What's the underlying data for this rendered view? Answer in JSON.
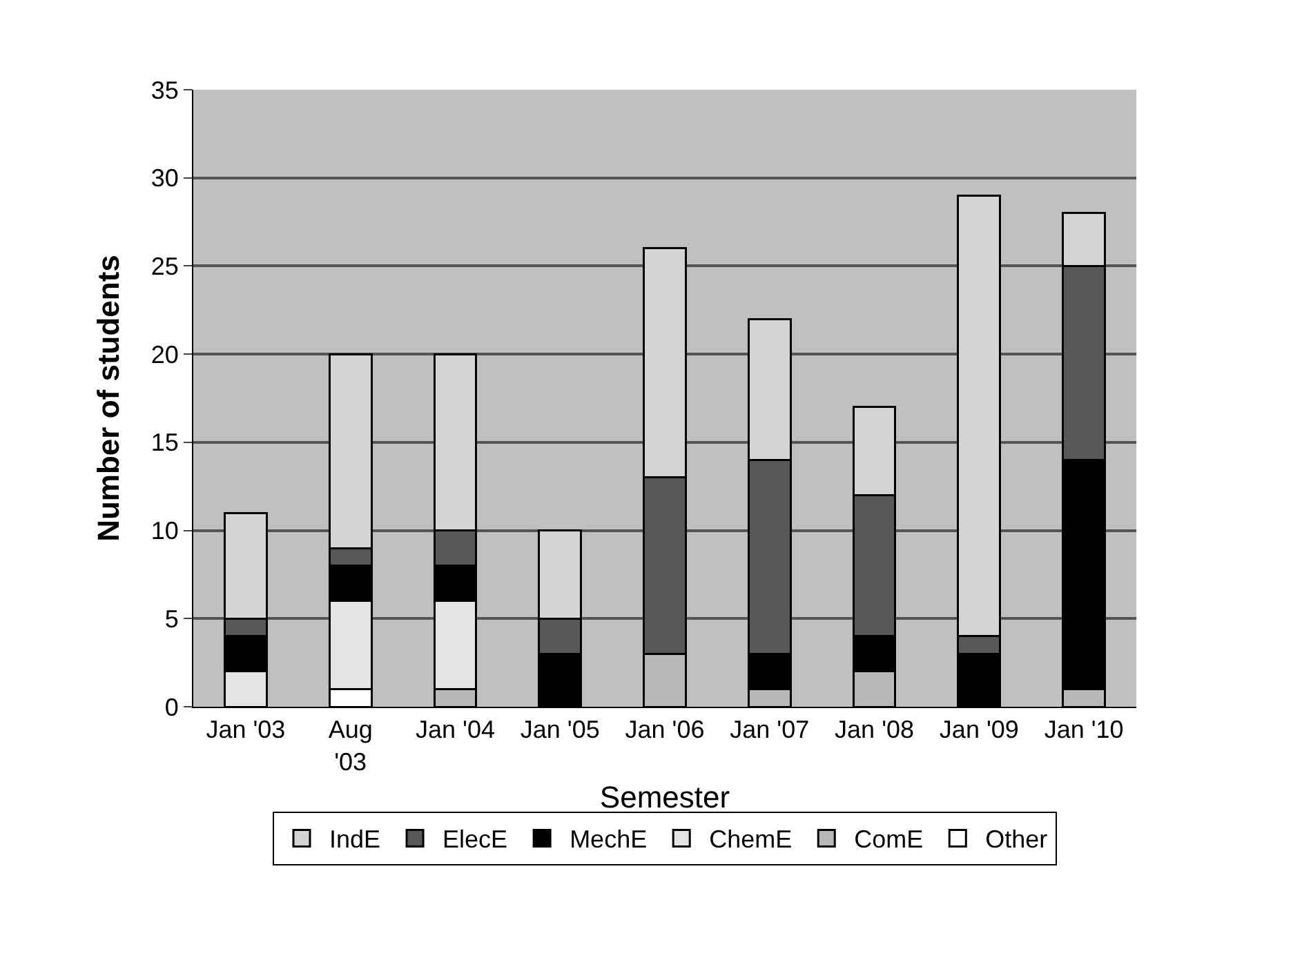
{
  "chart_data": {
    "type": "bar",
    "stacked": true,
    "xlabel": "Semester",
    "ylabel": "Number of students",
    "categories": [
      "Jan '03",
      "Aug '03",
      "Jan '04",
      "Jan '05",
      "Jan '06",
      "Jan '07",
      "Jan '08",
      "Jan '09",
      "Jan '10"
    ],
    "series": [
      {
        "name": "Other",
        "color": "#ffffff",
        "values": [
          0,
          1,
          0,
          0,
          0,
          0,
          0,
          0,
          0
        ]
      },
      {
        "name": "ComE",
        "color": "#b8b8b8",
        "values": [
          0,
          0,
          1,
          0,
          3,
          1,
          2,
          0,
          1
        ]
      },
      {
        "name": "ChemE",
        "color": "#e4e4e4",
        "values": [
          2,
          5,
          5,
          0,
          0,
          0,
          0,
          0,
          0
        ]
      },
      {
        "name": "MechE",
        "color": "#000000",
        "values": [
          2,
          2,
          2,
          3,
          0,
          2,
          2,
          3,
          13
        ]
      },
      {
        "name": "ElecE",
        "color": "#585858",
        "values": [
          1,
          1,
          2,
          2,
          10,
          11,
          8,
          1,
          11
        ]
      },
      {
        "name": "IndE",
        "color": "#d4d4d4",
        "values": [
          6,
          11,
          10,
          5,
          13,
          8,
          5,
          25,
          3
        ]
      }
    ],
    "ylim": [
      0,
      35
    ],
    "yticks": [
      0,
      5,
      10,
      15,
      20,
      25,
      30,
      35
    ],
    "grid": "y",
    "legend": "bottom"
  }
}
